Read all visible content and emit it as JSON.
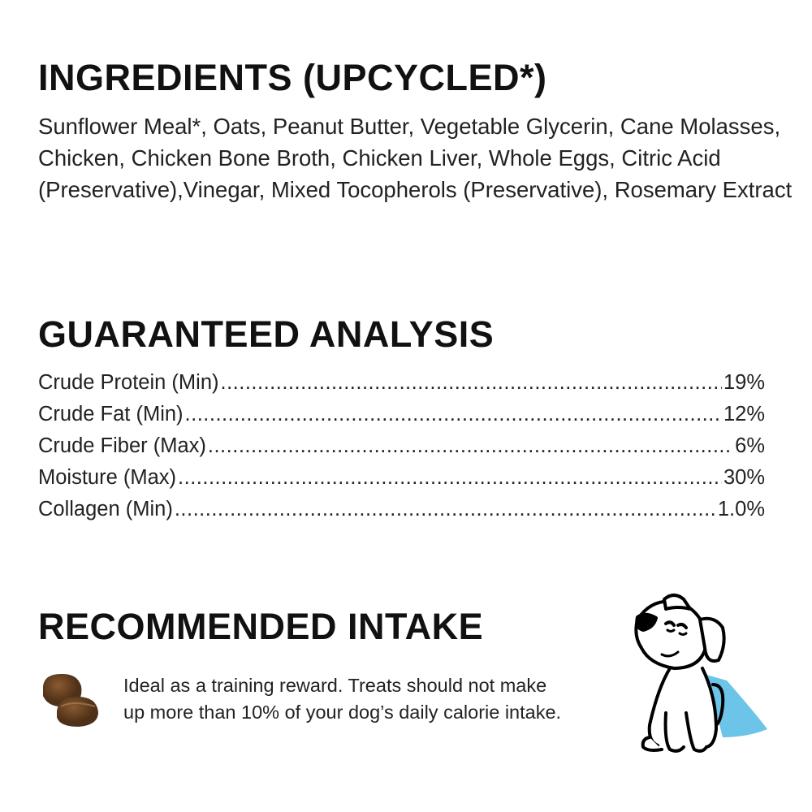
{
  "ingredients": {
    "title": "INGREDIENTS (UPCYCLED*)",
    "text": "Sunflower Meal*, Oats, Peanut Butter, Vegetable Glycerin, Cane Molasses, Chicken, Chicken Bone Broth, Chicken Liver, Whole Eggs, Citric Acid (Preservative),Vinegar, Mixed Tocopherols (Preservative), Rosemary Extract"
  },
  "analysis": {
    "title": "GUARANTEED ANALYSIS",
    "rows": [
      {
        "label": "Crude Protein (Min)",
        "value": "19%"
      },
      {
        "label": "Crude Fat (Min)",
        "value": "12%"
      },
      {
        "label": "Crude Fiber (Max)",
        "value": "6%"
      },
      {
        "label": "Moisture (Max)",
        "value": "30%"
      },
      {
        "label": "Collagen (Min)",
        "value": "1.0%"
      }
    ]
  },
  "intake": {
    "title": "RECOMMENDED INTAKE",
    "line1": "Ideal as a training reward. Treats should not make",
    "line2": "up more than 10% of your dog’s daily calorie intake."
  },
  "icons": {
    "treat": "treat-image",
    "dog": "dog-with-cape-illustration"
  },
  "colors": {
    "cape": "#6cc4e8",
    "treat": "#6b4423",
    "text": "#1a1a1a"
  }
}
